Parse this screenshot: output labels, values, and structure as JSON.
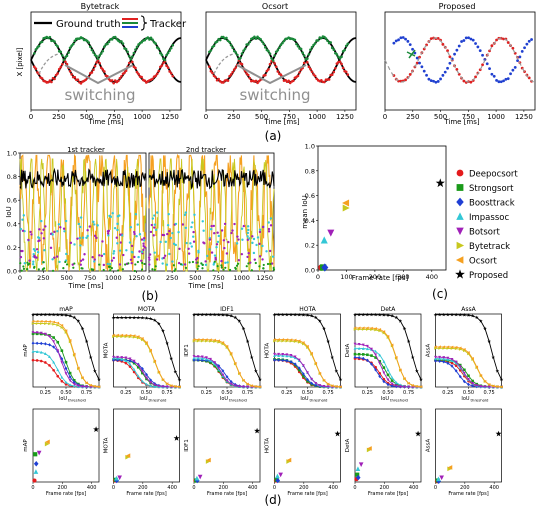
{
  "colors": {
    "Deepocsort": "#e41a1c",
    "Strongsort": "#1a9a1a",
    "Boosttrack": "#1f3fd4",
    "Impassoc": "#33c7d6",
    "Botsort": "#a020b8",
    "Bytetrack": "#c8c81e",
    "Ocsort": "#f5a020",
    "Proposed": "#000000",
    "gt": "#000000",
    "track_red": "#e02020",
    "track_green": "#1a8a3a",
    "track_blue": "#2040d0",
    "dashed": "#9a9a9a",
    "annotation": "#909090"
  },
  "panel_labels": [
    "(a)",
    "(b)",
    "(c)",
    "(d)"
  ],
  "chart_data": [
    {
      "type": "line",
      "title": "Bytetrack",
      "xlabel": "Time [ms]",
      "ylabel": "X [pixel]",
      "xticks": [
        "0",
        "250",
        "500",
        "750",
        "1000",
        "1250"
      ],
      "xlim": [
        0,
        1350
      ],
      "legend": [
        "Ground truth",
        "Tracker"
      ],
      "annotation": "switching",
      "series": [
        {
          "name": "Ground truth",
          "color": "#000000"
        },
        {
          "name": "Tracker",
          "color": "#1a8a3a"
        }
      ]
    },
    {
      "type": "line",
      "title": "Ocsort",
      "xlabel": "Time [ms]",
      "xticks": [
        "0",
        "250",
        "500",
        "750",
        "1000",
        "1250"
      ],
      "xlim": [
        0,
        1350
      ],
      "annotation": "switching"
    },
    {
      "type": "line",
      "title": "Proposed",
      "xlabel": "Time [ms]",
      "xticks": [
        "0",
        "250",
        "500",
        "750",
        "1000",
        "1250"
      ],
      "xlim": [
        0,
        1350
      ]
    },
    {
      "type": "line",
      "title": "1st tracker",
      "xlabel": "Time [ms]",
      "ylabel": "IoU",
      "xticks": [
        "0",
        "250",
        "500",
        "750",
        "1000",
        "1250"
      ],
      "yticks": [
        "0.0",
        "0.2",
        "0.4",
        "0.6",
        "0.8",
        "1.0"
      ],
      "xlim": [
        0,
        1350
      ],
      "ylim": [
        0,
        1.0
      ]
    },
    {
      "type": "line",
      "title": "2nd tracker",
      "xlabel": "Time [ms]",
      "xticks": [
        "0",
        "250",
        "500",
        "750",
        "1000",
        "1250"
      ],
      "yticks": [
        "0.0",
        "0.2",
        "0.4",
        "0.6",
        "0.8",
        "1.0"
      ],
      "xlim": [
        0,
        1350
      ],
      "ylim": [
        0,
        1.0
      ]
    },
    {
      "type": "scatter",
      "xlabel": "Frame rate [fps]",
      "ylabel": "mean IoU",
      "xticks": [
        "0",
        "100",
        "200",
        "300",
        "400"
      ],
      "yticks": [
        "0.0",
        "0.2",
        "0.4",
        "0.6",
        "0.8",
        "1.0"
      ],
      "xlim": [
        0,
        450
      ],
      "ylim": [
        0,
        1.0
      ],
      "legend_position": "right",
      "series": [
        {
          "name": "Deepocsort",
          "marker": "circle",
          "x": 12,
          "y": 0.02
        },
        {
          "name": "Strongsort",
          "marker": "square",
          "x": 18,
          "y": 0.02
        },
        {
          "name": "Boosttrack",
          "marker": "diamond",
          "x": 24,
          "y": 0.02
        },
        {
          "name": "Impassoc",
          "marker": "triangle-up",
          "x": 22,
          "y": 0.24
        },
        {
          "name": "Botsort",
          "marker": "triangle-down",
          "x": 45,
          "y": 0.3
        },
        {
          "name": "Bytetrack",
          "marker": "triangle-right",
          "x": 98,
          "y": 0.5
        },
        {
          "name": "Ocsort",
          "marker": "triangle-left",
          "x": 98,
          "y": 0.54
        },
        {
          "name": "Proposed",
          "marker": "star",
          "x": 430,
          "y": 0.7
        }
      ]
    }
  ],
  "d_panels": [
    {
      "title": "mAP",
      "ylabel": "mAP"
    },
    {
      "title": "MOTA",
      "ylabel": "MOTA"
    },
    {
      "title": "IDF1",
      "ylabel": "IDF1"
    },
    {
      "title": "HOTA",
      "ylabel": "HOTA"
    },
    {
      "title": "DetA",
      "ylabel": "DetA"
    },
    {
      "title": "AssA",
      "ylabel": "AssA"
    }
  ],
  "d_common": {
    "top_xticks": [
      "0.25",
      "0.50",
      "0.75"
    ],
    "top_xlabel": "IoU",
    "top_xlabel_sub": "threshold",
    "bottom_xticks": [
      "0",
      "200",
      "400"
    ],
    "bottom_xlabel": "Frame rate [fps]"
  },
  "d_scatter": {
    "mAP": {
      "Deepocsort": [
        10,
        0.02
      ],
      "Strongsort": [
        15,
        0.38
      ],
      "Boosttrack": [
        22,
        0.25
      ],
      "Impassoc": [
        20,
        0.14
      ],
      "Botsort": [
        42,
        0.4
      ],
      "Bytetrack": [
        95,
        0.52
      ],
      "Ocsort": [
        100,
        0.55
      ],
      "Proposed": [
        430,
        0.72
      ]
    },
    "MOTA": {
      "Deepocsort": [
        10,
        0.02
      ],
      "Strongsort": [
        15,
        0.03
      ],
      "Boosttrack": [
        22,
        0.02
      ],
      "Impassoc": [
        20,
        0.05
      ],
      "Botsort": [
        42,
        0.06
      ],
      "Bytetrack": [
        95,
        0.34
      ],
      "Ocsort": [
        100,
        0.36
      ],
      "Proposed": [
        430,
        0.6
      ]
    },
    "IDF1": {
      "Deepocsort": [
        10,
        0.02
      ],
      "Strongsort": [
        15,
        0.02
      ],
      "Boosttrack": [
        22,
        0.02
      ],
      "Impassoc": [
        20,
        0.05
      ],
      "Botsort": [
        42,
        0.07
      ],
      "Bytetrack": [
        95,
        0.28
      ],
      "Ocsort": [
        100,
        0.3
      ],
      "Proposed": [
        430,
        0.7
      ]
    },
    "HOTA": {
      "Deepocsort": [
        10,
        0.02
      ],
      "Strongsort": [
        15,
        0.03
      ],
      "Boosttrack": [
        22,
        0.02
      ],
      "Impassoc": [
        20,
        0.08
      ],
      "Botsort": [
        42,
        0.1
      ],
      "Bytetrack": [
        95,
        0.28
      ],
      "Ocsort": [
        100,
        0.3
      ],
      "Proposed": [
        430,
        0.66
      ]
    },
    "DetA": {
      "Deepocsort": [
        10,
        0.04
      ],
      "Strongsort": [
        15,
        0.1
      ],
      "Boosttrack": [
        22,
        0.06
      ],
      "Impassoc": [
        20,
        0.18
      ],
      "Botsort": [
        42,
        0.24
      ],
      "Bytetrack": [
        95,
        0.44
      ],
      "Ocsort": [
        100,
        0.46
      ],
      "Proposed": [
        430,
        0.66
      ]
    },
    "AssA": {
      "Deepocsort": [
        10,
        0.01
      ],
      "Strongsort": [
        15,
        0.02
      ],
      "Boosttrack": [
        22,
        0.01
      ],
      "Impassoc": [
        20,
        0.04
      ],
      "Botsort": [
        42,
        0.06
      ],
      "Bytetrack": [
        95,
        0.18
      ],
      "Ocsort": [
        100,
        0.2
      ],
      "Proposed": [
        430,
        0.66
      ]
    }
  }
}
